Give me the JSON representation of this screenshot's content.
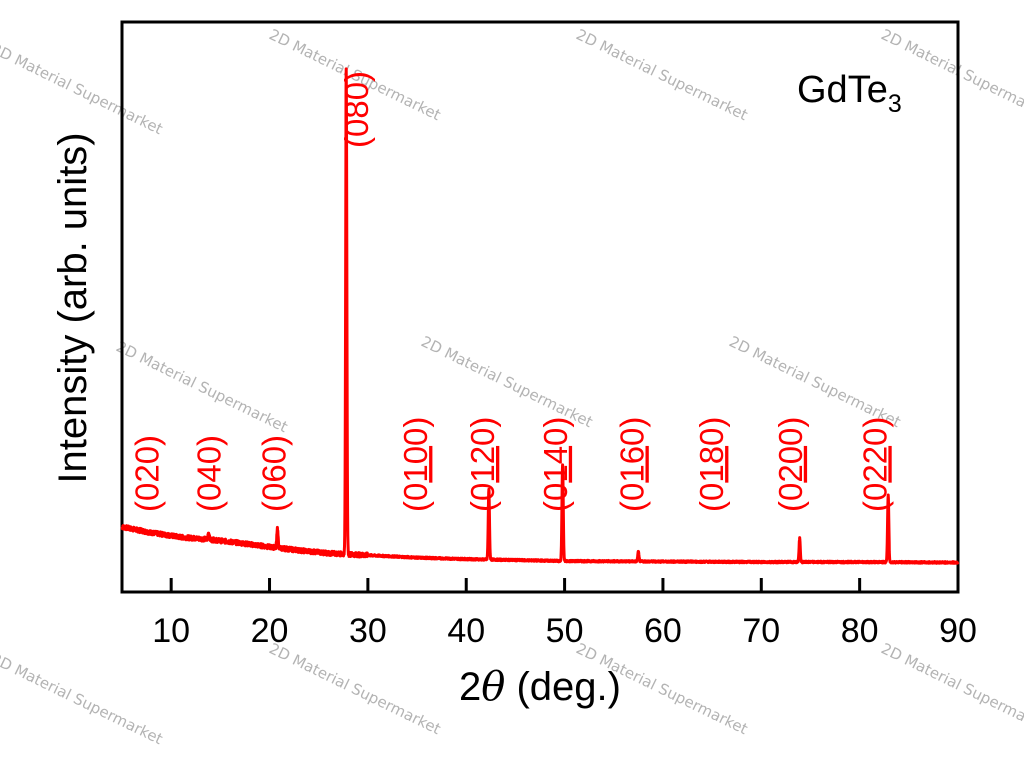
{
  "chart_data": {
    "type": "line",
    "sample_label": {
      "base": "GdTe",
      "subscript": "3"
    },
    "xlabel": {
      "prefix": "2",
      "symbol": "θ",
      "suffix": " (deg.)"
    },
    "ylabel": "Intensity (arb. units)",
    "xlim": [
      5,
      90
    ],
    "ylim": [
      0,
      100
    ],
    "x_ticks": [
      10,
      20,
      30,
      40,
      50,
      60,
      70,
      80,
      90
    ],
    "y_ticks_shown": false,
    "grid": false,
    "series": [
      {
        "color": "#ff0000",
        "background": [
          [
            5,
            7.4
          ],
          [
            8,
            6.2
          ],
          [
            11,
            5.3
          ],
          [
            14,
            4.8
          ],
          [
            17,
            4.1
          ],
          [
            20,
            3.3
          ],
          [
            23,
            2.6
          ],
          [
            26,
            2.0
          ],
          [
            30,
            1.6
          ],
          [
            35,
            1.1
          ],
          [
            40,
            0.8
          ],
          [
            45,
            0.6
          ],
          [
            50,
            0.4
          ],
          [
            60,
            0.3
          ],
          [
            70,
            0.2
          ],
          [
            80,
            0.2
          ],
          [
            90,
            0.1
          ]
        ],
        "peaks": [
          {
            "x": 13.8,
            "height": 1.4
          },
          {
            "x": 20.8,
            "height": 4.0
          },
          {
            "x": 27.8,
            "height": 99.0
          },
          {
            "x": 42.3,
            "height": 14.5
          },
          {
            "x": 49.8,
            "height": 19.7
          },
          {
            "x": 57.5,
            "height": 2.0
          },
          {
            "x": 73.9,
            "height": 4.9
          },
          {
            "x": 82.9,
            "height": 13.6
          }
        ]
      }
    ],
    "peak_labels": [
      {
        "pre": "(0",
        "under": "",
        "post": "20)",
        "x": 7.5
      },
      {
        "pre": "(0",
        "under": "",
        "post": "40)",
        "x": 13.8
      },
      {
        "pre": "(0",
        "under": "",
        "post": "60)",
        "x": 20.4
      },
      {
        "pre": "(0",
        "under": "",
        "post": "80)",
        "x": 28.8
      },
      {
        "pre": "(0",
        "under": "10",
        "post": "0)",
        "x": 34.8
      },
      {
        "pre": "(0",
        "under": "12",
        "post": "0)",
        "x": 41.6
      },
      {
        "pre": "(0",
        "under": "14",
        "post": "0)",
        "x": 49.0
      },
      {
        "pre": "(0",
        "under": "16",
        "post": "0)",
        "x": 56.8
      },
      {
        "pre": "(0",
        "under": "18",
        "post": "0)",
        "x": 64.9
      },
      {
        "pre": "(0",
        "under": "20",
        "post": "0)",
        "x": 72.9
      },
      {
        "pre": "(0",
        "under": "22",
        "post": "0)",
        "x": 81.5
      }
    ]
  },
  "watermark_text": "2D Material Supermarket"
}
